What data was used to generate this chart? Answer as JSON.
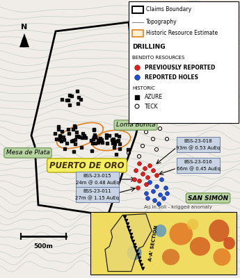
{
  "background_color": "#e8ede8",
  "legend": {
    "title_drilling": "DRILLING",
    "subtitle_bendito": "BENDITO RESOURCES",
    "prev_reported": "PREVIOUSLY REPORTED",
    "reported_holes": "REPORTED HOLES",
    "historic": "HISTORIC",
    "azure": "AZURE",
    "teck": "TECK",
    "claims_boundary": "Claims Boundary",
    "topography": "Topography",
    "hist_resource": "Historic Resource Estimate"
  },
  "labels": {
    "mesa_de_plata": "Mesa de Plata",
    "puerto_de_oro": "PUERTO DE ORO",
    "loma_bonita": "Loma Bonita",
    "san_simon": "SAN SIMÓN",
    "scale": "500m"
  },
  "inset_label": "Au in soil - krigged anomaly",
  "aa_section": "A-A' SECTION"
}
